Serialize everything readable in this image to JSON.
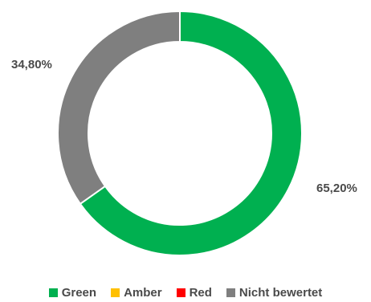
{
  "chart_data": {
    "type": "pie",
    "categories": [
      "Green",
      "Amber",
      "Red",
      "Nicht bewertet"
    ],
    "values": [
      65.2,
      0,
      0,
      34.8
    ],
    "data_labels": [
      "65,20%",
      "",
      "",
      "34,80%"
    ],
    "colors": [
      "#00b050",
      "#ffc000",
      "#ff0000",
      "#7f7f7f"
    ],
    "legend_position": "bottom",
    "donut": true
  }
}
